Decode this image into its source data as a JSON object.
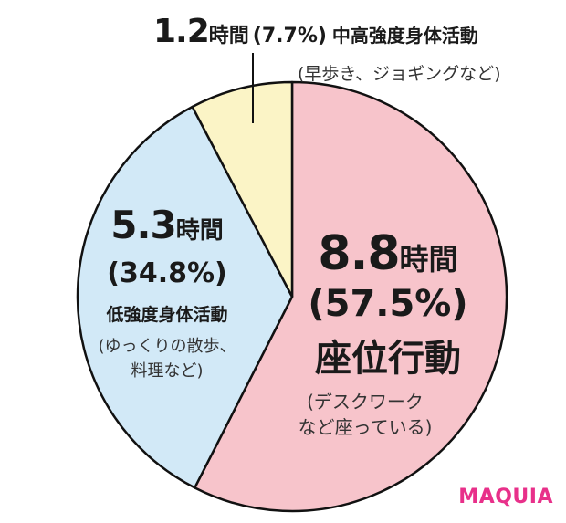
{
  "chart_data": {
    "type": "pie",
    "slices": [
      {
        "key": "sedentary",
        "hours": "8.8",
        "unit": "時間",
        "percent": "(57.5%)",
        "value": 57.5,
        "category": "座位行動",
        "example1": "(デスクワーク",
        "example2": "など座っている)",
        "color": "#f7c4cb"
      },
      {
        "key": "light",
        "hours": "5.3",
        "unit": "時間",
        "percent": "(34.8%)",
        "value": 34.8,
        "category": "低強度身体活動",
        "example1": "(ゆっくりの散歩、",
        "example2": "料理など)",
        "color": "#d2e9f7"
      },
      {
        "key": "moderate",
        "hours": "1.2",
        "unit": "時間",
        "percent": "(7.7%)",
        "value": 7.7,
        "category": "中高強度身体活動",
        "example1": "(早歩き、ジョギングなど)",
        "color": "#fbf4c6"
      }
    ]
  },
  "brand": "MAQUIA"
}
